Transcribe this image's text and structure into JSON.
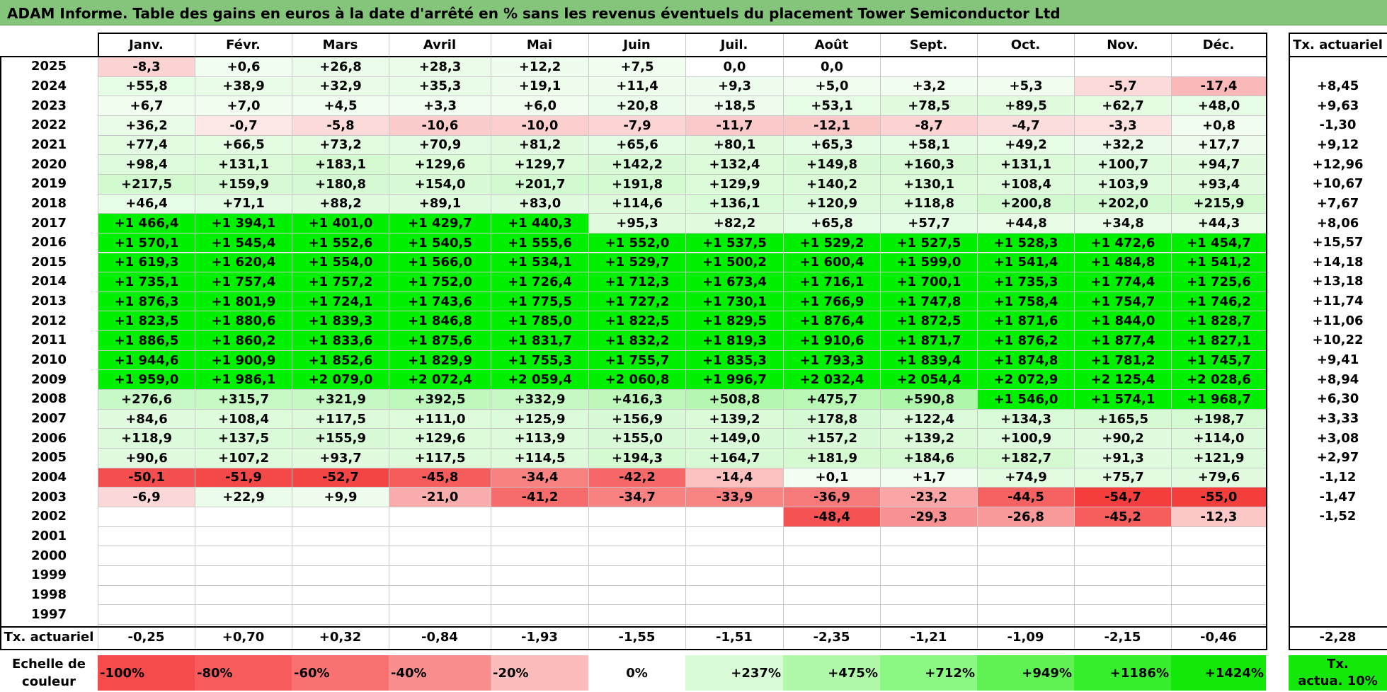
{
  "title": "ADAM Informe. Table des gains en euros à la date d'arrêté en % sans les revenus éventuels du placement Tower Semiconductor Ltd",
  "months": [
    "Janv.",
    "Févr.",
    "Mars",
    "Avril",
    "Mai",
    "Juin",
    "Juil.",
    "Août",
    "Sept.",
    "Oct.",
    "Nov.",
    "Déc."
  ],
  "rate_header": "Tx. actuariel",
  "rows": [
    {
      "year": "2025",
      "values": [
        "-8,3",
        "+0,6",
        "+26,8",
        "+28,3",
        "+12,2",
        "+7,5",
        "0,0",
        "0,0",
        "",
        "",
        "",
        ""
      ],
      "rate": ""
    },
    {
      "year": "2024",
      "values": [
        "+55,8",
        "+38,9",
        "+32,9",
        "+35,3",
        "+19,1",
        "+11,4",
        "+9,3",
        "+5,0",
        "+3,2",
        "+5,3",
        "-5,7",
        "-17,4"
      ],
      "rate": "+8,45"
    },
    {
      "year": "2023",
      "values": [
        "+6,7",
        "+7,0",
        "+4,5",
        "+3,3",
        "+6,0",
        "+20,8",
        "+18,5",
        "+53,1",
        "+78,5",
        "+89,5",
        "+62,7",
        "+48,0"
      ],
      "rate": "+9,63"
    },
    {
      "year": "2022",
      "values": [
        "+36,2",
        "-0,7",
        "-5,8",
        "-10,6",
        "-10,0",
        "-7,9",
        "-11,7",
        "-12,1",
        "-8,7",
        "-4,7",
        "-3,3",
        "+0,8"
      ],
      "rate": "-1,30"
    },
    {
      "year": "2021",
      "values": [
        "+77,4",
        "+66,5",
        "+73,2",
        "+70,9",
        "+81,2",
        "+65,6",
        "+80,1",
        "+65,3",
        "+58,1",
        "+49,2",
        "+32,2",
        "+17,7"
      ],
      "rate": "+9,12"
    },
    {
      "year": "2020",
      "values": [
        "+98,4",
        "+131,1",
        "+183,1",
        "+129,6",
        "+129,7",
        "+142,2",
        "+132,4",
        "+149,8",
        "+160,3",
        "+131,1",
        "+100,7",
        "+94,7"
      ],
      "rate": "+12,96"
    },
    {
      "year": "2019",
      "values": [
        "+217,5",
        "+159,9",
        "+180,8",
        "+154,0",
        "+201,7",
        "+191,8",
        "+129,9",
        "+140,2",
        "+130,1",
        "+108,4",
        "+103,9",
        "+93,4"
      ],
      "rate": "+10,67"
    },
    {
      "year": "2018",
      "values": [
        "+46,4",
        "+71,1",
        "+88,2",
        "+89,1",
        "+83,0",
        "+114,6",
        "+136,1",
        "+120,9",
        "+118,8",
        "+200,8",
        "+202,0",
        "+215,9"
      ],
      "rate": "+7,67"
    },
    {
      "year": "2017",
      "values": [
        "+1 466,4",
        "+1 394,1",
        "+1 401,0",
        "+1 429,7",
        "+1 440,3",
        "+95,3",
        "+82,2",
        "+65,8",
        "+57,7",
        "+44,8",
        "+34,8",
        "+44,3"
      ],
      "rate": "+8,06"
    },
    {
      "year": "2016",
      "values": [
        "+1 570,1",
        "+1 545,4",
        "+1 552,6",
        "+1 540,5",
        "+1 555,6",
        "+1 552,0",
        "+1 537,5",
        "+1 529,2",
        "+1 527,5",
        "+1 528,3",
        "+1 472,6",
        "+1 454,7"
      ],
      "rate": "+15,57"
    },
    {
      "year": "2015",
      "values": [
        "+1 619,3",
        "+1 620,4",
        "+1 554,0",
        "+1 566,0",
        "+1 534,1",
        "+1 529,7",
        "+1 500,2",
        "+1 600,4",
        "+1 599,0",
        "+1 541,4",
        "+1 484,8",
        "+1 541,2"
      ],
      "rate": "+14,18"
    },
    {
      "year": "2014",
      "values": [
        "+1 735,1",
        "+1 757,4",
        "+1 757,2",
        "+1 752,0",
        "+1 726,4",
        "+1 712,3",
        "+1 673,4",
        "+1 716,1",
        "+1 700,1",
        "+1 735,3",
        "+1 774,4",
        "+1 725,6"
      ],
      "rate": "+13,18"
    },
    {
      "year": "2013",
      "values": [
        "+1 876,3",
        "+1 801,9",
        "+1 724,1",
        "+1 743,6",
        "+1 775,5",
        "+1 727,2",
        "+1 730,1",
        "+1 766,9",
        "+1 747,8",
        "+1 758,4",
        "+1 754,7",
        "+1 746,2"
      ],
      "rate": "+11,74"
    },
    {
      "year": "2012",
      "values": [
        "+1 823,5",
        "+1 880,6",
        "+1 839,3",
        "+1 846,8",
        "+1 785,0",
        "+1 822,5",
        "+1 829,5",
        "+1 876,4",
        "+1 872,5",
        "+1 871,6",
        "+1 844,0",
        "+1 828,7"
      ],
      "rate": "+11,06"
    },
    {
      "year": "2011",
      "values": [
        "+1 886,5",
        "+1 860,2",
        "+1 833,6",
        "+1 875,6",
        "+1 831,7",
        "+1 832,2",
        "+1 819,3",
        "+1 910,6",
        "+1 871,7",
        "+1 876,2",
        "+1 877,4",
        "+1 827,1"
      ],
      "rate": "+10,22"
    },
    {
      "year": "2010",
      "values": [
        "+1 944,6",
        "+1 900,9",
        "+1 852,6",
        "+1 829,9",
        "+1 755,3",
        "+1 755,7",
        "+1 835,3",
        "+1 793,3",
        "+1 839,4",
        "+1 874,8",
        "+1 781,2",
        "+1 745,7"
      ],
      "rate": "+9,41"
    },
    {
      "year": "2009",
      "values": [
        "+1 959,0",
        "+1 986,1",
        "+2 079,0",
        "+2 072,4",
        "+2 059,4",
        "+2 060,8",
        "+1 996,7",
        "+2 032,4",
        "+2 054,4",
        "+2 072,9",
        "+2 125,4",
        "+2 028,6"
      ],
      "rate": "+8,94"
    },
    {
      "year": "2008",
      "values": [
        "+276,6",
        "+315,7",
        "+321,9",
        "+392,5",
        "+332,9",
        "+416,3",
        "+508,8",
        "+475,7",
        "+590,8",
        "+1 546,0",
        "+1 574,1",
        "+1 968,7"
      ],
      "rate": "+6,30"
    },
    {
      "year": "2007",
      "values": [
        "+84,6",
        "+108,4",
        "+117,5",
        "+111,0",
        "+125,9",
        "+156,9",
        "+139,2",
        "+178,8",
        "+122,4",
        "+134,3",
        "+165,5",
        "+198,7"
      ],
      "rate": "+3,33"
    },
    {
      "year": "2006",
      "values": [
        "+118,9",
        "+137,5",
        "+155,9",
        "+129,6",
        "+113,9",
        "+155,0",
        "+149,0",
        "+157,2",
        "+139,2",
        "+100,9",
        "+90,2",
        "+114,0"
      ],
      "rate": "+3,08"
    },
    {
      "year": "2005",
      "values": [
        "+90,6",
        "+107,2",
        "+93,7",
        "+117,5",
        "+114,5",
        "+194,3",
        "+164,7",
        "+181,9",
        "+184,6",
        "+182,7",
        "+91,3",
        "+121,9"
      ],
      "rate": "+2,97"
    },
    {
      "year": "2004",
      "values": [
        "-50,1",
        "-51,9",
        "-52,7",
        "-45,8",
        "-34,4",
        "-42,2",
        "-14,4",
        "+0,1",
        "+1,7",
        "+74,9",
        "+75,7",
        "+79,6"
      ],
      "rate": "-1,12"
    },
    {
      "year": "2003",
      "values": [
        "-6,9",
        "+22,9",
        "+9,9",
        "-21,0",
        "-41,2",
        "-34,7",
        "-33,9",
        "-36,9",
        "-23,2",
        "-44,5",
        "-54,7",
        "-55,0"
      ],
      "rate": "-1,47"
    },
    {
      "year": "2002",
      "values": [
        "",
        "",
        "",
        "",
        "",
        "",
        "",
        "-48,4",
        "-29,3",
        "-26,8",
        "-45,2",
        "-12,3"
      ],
      "rate": "-1,52"
    },
    {
      "year": "2001",
      "values": [
        "",
        "",
        "",
        "",
        "",
        "",
        "",
        "",
        "",
        "",
        "",
        ""
      ],
      "rate": ""
    },
    {
      "year": "2000",
      "values": [
        "",
        "",
        "",
        "",
        "",
        "",
        "",
        "",
        "",
        "",
        "",
        ""
      ],
      "rate": ""
    },
    {
      "year": "1999",
      "values": [
        "",
        "",
        "",
        "",
        "",
        "",
        "",
        "",
        "",
        "",
        "",
        ""
      ],
      "rate": ""
    },
    {
      "year": "1998",
      "values": [
        "",
        "",
        "",
        "",
        "",
        "",
        "",
        "",
        "",
        "",
        "",
        ""
      ],
      "rate": ""
    },
    {
      "year": "1997",
      "values": [
        "",
        "",
        "",
        "",
        "",
        "",
        "",
        "",
        "",
        "",
        "",
        ""
      ],
      "rate": ""
    }
  ],
  "footer": {
    "label": "Tx. actuariel",
    "values": [
      "-0,25",
      "+0,70",
      "+0,32",
      "-0,84",
      "-1,93",
      "-1,55",
      "-1,51",
      "-2,35",
      "-1,21",
      "-1,09",
      "-2,15",
      "-0,46"
    ],
    "rate": "-2,28"
  },
  "scale": {
    "label_line1": "Echelle de",
    "label_line2": "couleur",
    "steps": [
      "-100%",
      "-80%",
      "-60%",
      "-40%",
      "-20%",
      "0%",
      "+237%",
      "+475%",
      "+712%",
      "+949%",
      "+1186%",
      "+1424%"
    ],
    "step_colors": [
      "#f74a4a",
      "#f85c5c",
      "#f97171",
      "#fa8d8d",
      "#fcbcbc",
      "#ffffff",
      "#d9fbd6",
      "#b0f9a9",
      "#8af882",
      "#5ef353",
      "#36ee2b",
      "#14e80a"
    ],
    "rate_line1": "Tx.",
    "rate_line2": "actua. 10%",
    "rate_color": "#14e80a"
  },
  "colors": {
    "title_bg": "#84c57b",
    "strong_green": "#00f000"
  }
}
